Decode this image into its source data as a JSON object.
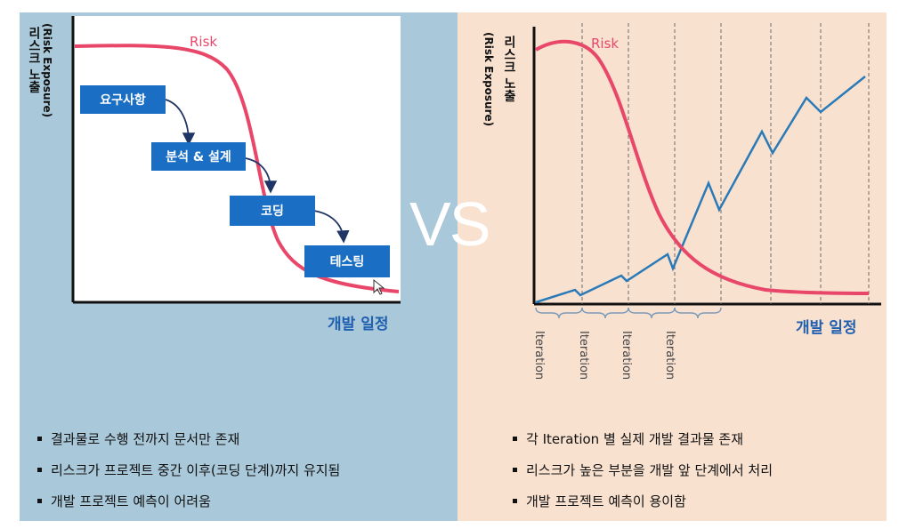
{
  "vs_text": "VS",
  "left": {
    "ylabel": "리스크 노출",
    "ylabel_sub": "(Risk Exposure)",
    "xlabel": "개발 일정",
    "risk_label": "Risk",
    "phases": [
      "요구사항",
      "분석 & 설계",
      "코딩",
      "테스팅"
    ],
    "bullets": [
      "결과물로 수행 전까지 문서만 존재",
      "리스크가 프로젝트 중간 이후(코딩 단계)까지 유지됨",
      "개발 프로젝트 예측이 어려움"
    ],
    "colors": {
      "panel": "#a9c8d9",
      "risk_curve": "#e8476a",
      "phase_box": "#1a6fc4"
    }
  },
  "right": {
    "ylabel": "리스크 노출",
    "ylabel_sub": "(Risk Exposure)",
    "xlabel": "개발 일정",
    "risk_label": "Risk",
    "iterations": [
      "Iteration",
      "Iteration",
      "Iteration",
      "Iteration"
    ],
    "bullets": [
      "각 Iteration 별 실제 개발 결과물 존재",
      "리스크가 높은 부분을 개발 앞 단계에서 처리",
      "개발 프로젝트 예측이 용이함"
    ],
    "colors": {
      "panel": "#f9e1d0",
      "risk_curve": "#e8476a",
      "progress_line": "#2a7ab8"
    }
  }
}
